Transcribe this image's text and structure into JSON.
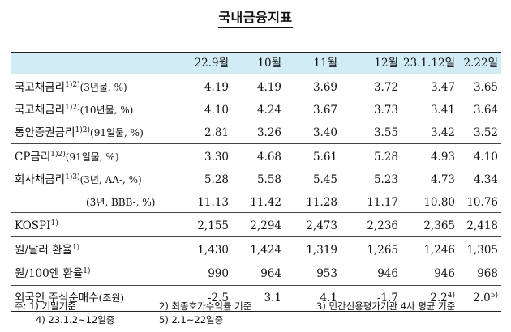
{
  "title": "국내금융지표",
  "columns": [
    "22.9월",
    "10월",
    "11월",
    "12월",
    "23.1.12일",
    "2.22일"
  ],
  "rows": [
    {
      "label": "국고채금리",
      "sup": "1)2)",
      "unit": "(3년물, %)",
      "values": [
        "4.19",
        "4.19",
        "3.69",
        "3.72",
        "3.47",
        "3.65"
      ]
    },
    {
      "label": "국고채금리",
      "sup": "1)2)",
      "unit": "(10년물, %)",
      "values": [
        "4.10",
        "4.24",
        "3.67",
        "3.73",
        "3.41",
        "3.64"
      ]
    },
    {
      "label": "통안증권금리",
      "sup": "1)2)",
      "unit": "(91일물, %)",
      "values": [
        "2.81",
        "3.26",
        "3.40",
        "3.55",
        "3.42",
        "3.52"
      ]
    },
    {
      "label": "CP금리",
      "sup": "1)2)",
      "unit": "(91일물, %)",
      "values": [
        "3.30",
        "4.68",
        "5.61",
        "5.28",
        "4.93",
        "4.10"
      ]
    },
    {
      "label": "회사채금리",
      "sup": "1)3)",
      "unit": "(3년, AA-, %)",
      "values": [
        "5.28",
        "5.58",
        "5.45",
        "5.23",
        "4.73",
        "4.34"
      ]
    },
    {
      "label": "",
      "sup": "",
      "unit": "(3년, BBB-, %)",
      "values": [
        "11.13",
        "11.42",
        "11.28",
        "11.17",
        "10.80",
        "10.76"
      ]
    },
    {
      "label": "KOSPI",
      "sup": "1)",
      "unit": "",
      "values": [
        "2,155",
        "2,294",
        "2,473",
        "2,236",
        "2,365",
        "2,418"
      ]
    },
    {
      "label": "원/달러 환율",
      "sup": "1)",
      "unit": "",
      "values": [
        "1,430",
        "1,424",
        "1,319",
        "1,265",
        "1,246",
        "1,305"
      ]
    },
    {
      "label": "원/100엔 환율",
      "sup": "1)",
      "unit": "",
      "values": [
        "990",
        "964",
        "953",
        "946",
        "946",
        "968"
      ]
    },
    {
      "label": "외국인 주식순매수",
      "sup": "",
      "unit": "(조원)",
      "values": [
        "-2.5",
        "3.1",
        "4.1",
        "-1.7",
        "2.2",
        "2.0"
      ],
      "value_sups": [
        "",
        "",
        "",
        "",
        "4)",
        "5)"
      ]
    }
  ],
  "notes": {
    "line1": [
      "주: 1) 기말기준",
      "2) 최종호가수익률 기준",
      "3) 민간신용평가기관 4사 평균 기준"
    ],
    "line2": [
      "4) 23.1.2~12일중",
      "5) 2.1~22일중"
    ]
  }
}
